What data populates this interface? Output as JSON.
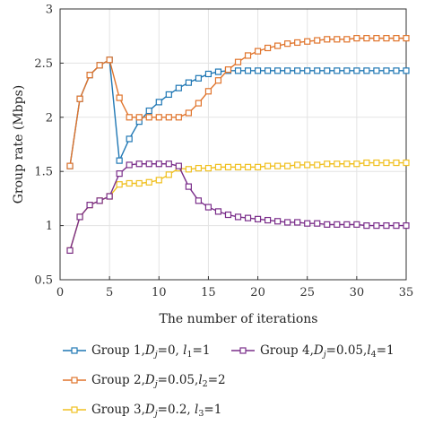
{
  "chart_data": {
    "type": "line",
    "xlabel": "The number of iterations",
    "ylabel": "Group rate (Mbps)",
    "xlim": [
      0,
      35
    ],
    "ylim": [
      0.5,
      3
    ],
    "xticks": [
      "0",
      "5",
      "10",
      "15",
      "20",
      "25",
      "30",
      "35"
    ],
    "yticks": [
      "0.5",
      "1",
      "1.5",
      "2",
      "2.5",
      "3"
    ],
    "grid": true,
    "marker": "square",
    "legend_position": "bottom",
    "x": [
      1,
      2,
      3,
      4,
      5,
      6,
      7,
      8,
      9,
      10,
      11,
      12,
      13,
      14,
      15,
      16,
      17,
      18,
      19,
      20,
      21,
      22,
      23,
      24,
      25,
      26,
      27,
      28,
      29,
      30,
      31,
      32,
      33,
      34,
      35
    ],
    "series": [
      {
        "name": "Group 1,",
        "color": "#1f77b4",
        "values": [
          1.55,
          2.17,
          2.39,
          2.48,
          2.53,
          1.6,
          1.8,
          1.96,
          2.06,
          2.14,
          2.21,
          2.27,
          2.32,
          2.36,
          2.4,
          2.42,
          2.43,
          2.43,
          2.43,
          2.43,
          2.43,
          2.43,
          2.43,
          2.43,
          2.43,
          2.43,
          2.43,
          2.43,
          2.43,
          2.43,
          2.43,
          2.43,
          2.43,
          2.43,
          2.43
        ]
      },
      {
        "name": "Group 2,",
        "color": "#e0742c",
        "values": [
          1.55,
          2.17,
          2.39,
          2.48,
          2.53,
          2.18,
          2.0,
          2.0,
          2.0,
          2.0,
          2.0,
          2.0,
          2.04,
          2.13,
          2.24,
          2.34,
          2.44,
          2.51,
          2.57,
          2.61,
          2.64,
          2.66,
          2.68,
          2.69,
          2.7,
          2.71,
          2.72,
          2.72,
          2.72,
          2.73,
          2.73,
          2.73,
          2.73,
          2.73,
          2.73
        ]
      },
      {
        "name": "Group 3,",
        "color": "#f0c020",
        "values": [
          0.77,
          1.08,
          1.19,
          1.23,
          1.27,
          1.38,
          1.39,
          1.39,
          1.4,
          1.42,
          1.47,
          1.53,
          1.52,
          1.53,
          1.53,
          1.54,
          1.54,
          1.54,
          1.54,
          1.54,
          1.55,
          1.55,
          1.55,
          1.56,
          1.56,
          1.56,
          1.57,
          1.57,
          1.57,
          1.57,
          1.58,
          1.58,
          1.58,
          1.58,
          1.58
        ]
      },
      {
        "name": "Group 4,",
        "color": "#7a2e8a",
        "values": [
          0.77,
          1.08,
          1.19,
          1.23,
          1.27,
          1.48,
          1.56,
          1.57,
          1.57,
          1.57,
          1.57,
          1.55,
          1.36,
          1.23,
          1.17,
          1.13,
          1.1,
          1.08,
          1.07,
          1.06,
          1.05,
          1.04,
          1.03,
          1.03,
          1.02,
          1.02,
          1.01,
          1.01,
          1.01,
          1.01,
          1.0,
          1.0,
          1.0,
          1.0,
          1.0
        ]
      }
    ],
    "legend_params": [
      {
        "sym": "D",
        "sub": "j",
        "eq1": "=0, ",
        "l": "l",
        "lsub": "1",
        "eq2": "=1"
      },
      {
        "sym": "D",
        "sub": "j",
        "eq1": "=0.05,",
        "l": "l",
        "lsub": "2",
        "eq2": "=2"
      },
      {
        "sym": "D",
        "sub": "j",
        "eq1": "=0.2, ",
        "l": "l",
        "lsub": "3",
        "eq2": "=1"
      },
      {
        "sym": "D",
        "sub": "j",
        "eq1": "=0.05,",
        "l": "l",
        "lsub": "4",
        "eq2": "=1"
      }
    ]
  }
}
